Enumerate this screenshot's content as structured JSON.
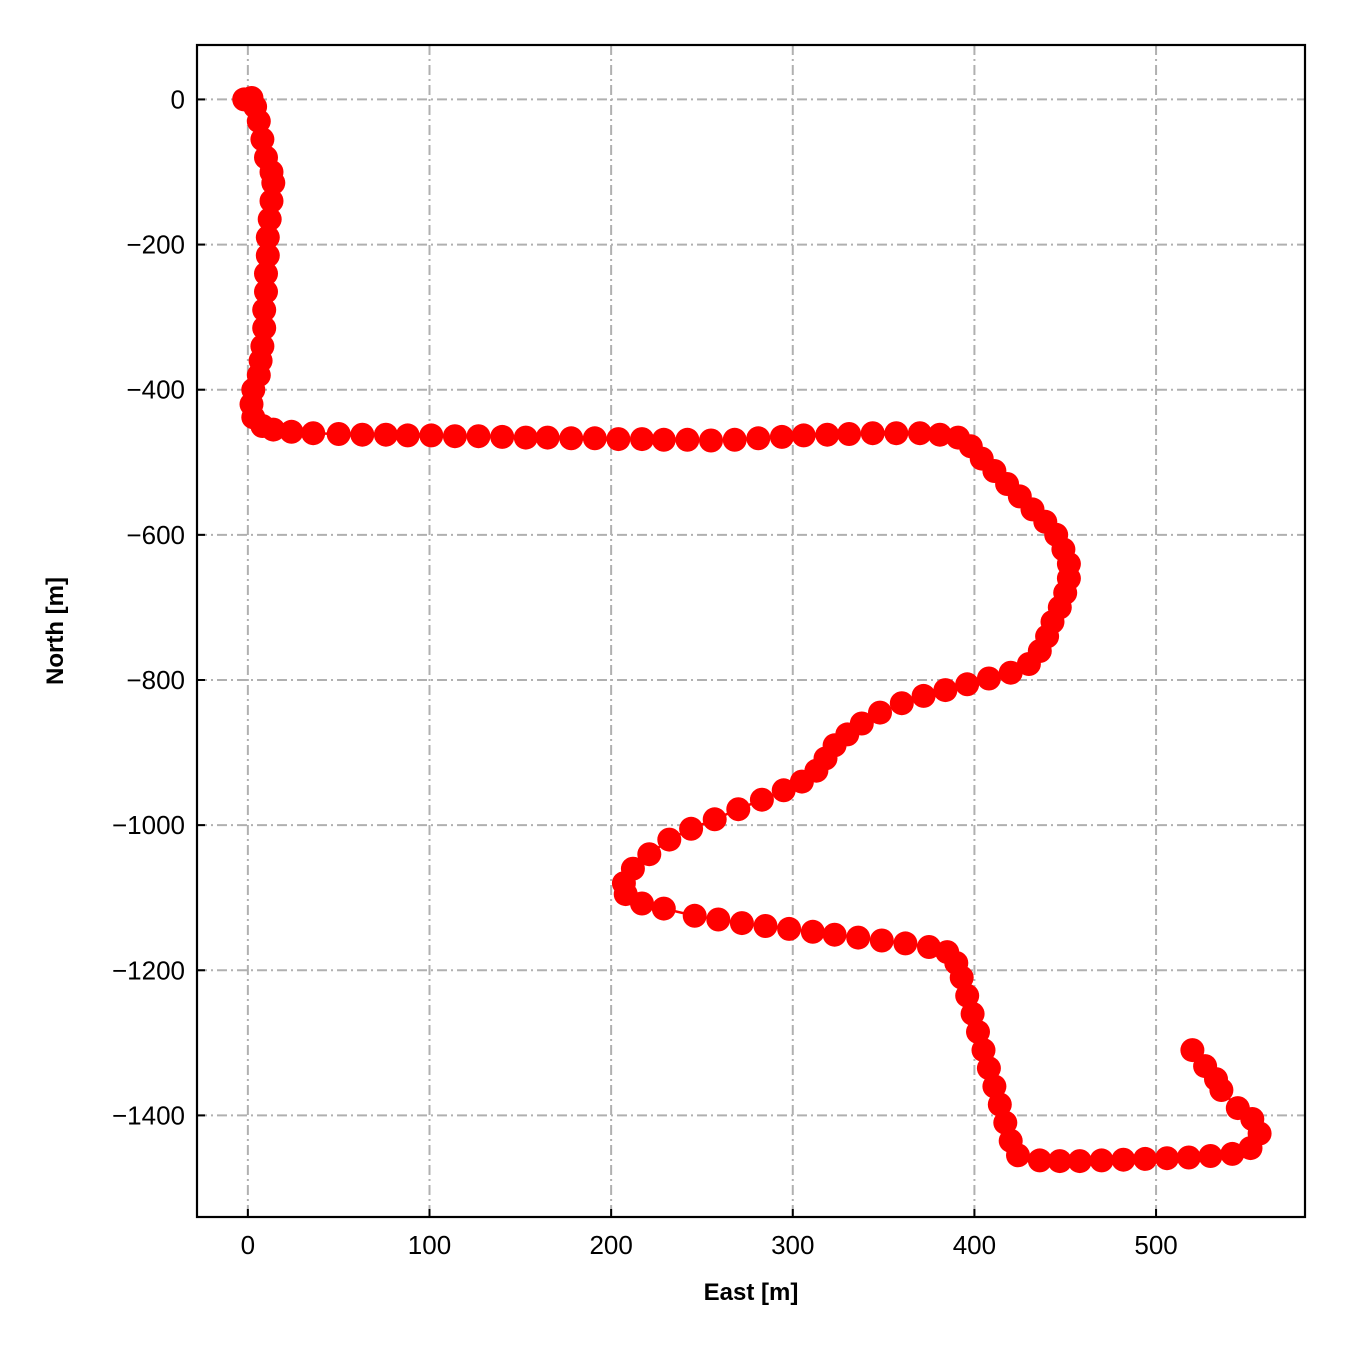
{
  "chart_data": {
    "type": "scatter",
    "xlabel": "East [m]",
    "ylabel": "North [m]",
    "xlim": [
      -28,
      582
    ],
    "ylim": [
      -1540,
      75
    ],
    "xticks": [
      0,
      100,
      200,
      300,
      400,
      500
    ],
    "yticks": [
      0,
      -200,
      -400,
      -600,
      -800,
      -1000,
      -1200,
      -1400
    ],
    "xtick_labels": [
      "0",
      "100",
      "200",
      "300",
      "400",
      "500"
    ],
    "ytick_labels": [
      "0",
      "−200",
      "−400",
      "−600",
      "−800",
      "−1000",
      "−1200",
      "−1400"
    ],
    "grid": true,
    "legend": "none",
    "series": [
      {
        "color": "#ff0000",
        "marker": "circle",
        "line": true,
        "points": [
          {
            "x": -2,
            "y": 0
          },
          {
            "x": 2,
            "y": 2
          },
          {
            "x": 4,
            "y": -10
          },
          {
            "x": 6,
            "y": -30
          },
          {
            "x": 8,
            "y": -55
          },
          {
            "x": 10,
            "y": -80
          },
          {
            "x": 13,
            "y": -100
          },
          {
            "x": 14,
            "y": -115
          },
          {
            "x": 13,
            "y": -140
          },
          {
            "x": 12,
            "y": -165
          },
          {
            "x": 11,
            "y": -190
          },
          {
            "x": 11,
            "y": -215
          },
          {
            "x": 10,
            "y": -240
          },
          {
            "x": 10,
            "y": -265
          },
          {
            "x": 9,
            "y": -290
          },
          {
            "x": 9,
            "y": -315
          },
          {
            "x": 8,
            "y": -340
          },
          {
            "x": 7,
            "y": -360
          },
          {
            "x": 6,
            "y": -380
          },
          {
            "x": 3,
            "y": -400
          },
          {
            "x": 2,
            "y": -420
          },
          {
            "x": 3,
            "y": -438
          },
          {
            "x": 8,
            "y": -450
          },
          {
            "x": 14,
            "y": -455
          },
          {
            "x": 24,
            "y": -458
          },
          {
            "x": 36,
            "y": -460
          },
          {
            "x": 50,
            "y": -461
          },
          {
            "x": 63,
            "y": -462
          },
          {
            "x": 76,
            "y": -462
          },
          {
            "x": 88,
            "y": -463
          },
          {
            "x": 101,
            "y": -463
          },
          {
            "x": 114,
            "y": -464
          },
          {
            "x": 127,
            "y": -464
          },
          {
            "x": 140,
            "y": -465
          },
          {
            "x": 153,
            "y": -466
          },
          {
            "x": 165,
            "y": -466
          },
          {
            "x": 178,
            "y": -467
          },
          {
            "x": 191,
            "y": -467
          },
          {
            "x": 204,
            "y": -468
          },
          {
            "x": 217,
            "y": -468
          },
          {
            "x": 229,
            "y": -469
          },
          {
            "x": 242,
            "y": -469
          },
          {
            "x": 255,
            "y": -470
          },
          {
            "x": 268,
            "y": -469
          },
          {
            "x": 281,
            "y": -467
          },
          {
            "x": 294,
            "y": -465
          },
          {
            "x": 306,
            "y": -463
          },
          {
            "x": 319,
            "y": -462
          },
          {
            "x": 331,
            "y": -461
          },
          {
            "x": 344,
            "y": -460
          },
          {
            "x": 357,
            "y": -460
          },
          {
            "x": 370,
            "y": -460
          },
          {
            "x": 381,
            "y": -462
          },
          {
            "x": 391,
            "y": -466
          },
          {
            "x": 398,
            "y": -478
          },
          {
            "x": 404,
            "y": -495
          },
          {
            "x": 411,
            "y": -512
          },
          {
            "x": 418,
            "y": -530
          },
          {
            "x": 425,
            "y": -547
          },
          {
            "x": 432,
            "y": -565
          },
          {
            "x": 439,
            "y": -582
          },
          {
            "x": 445,
            "y": -600
          },
          {
            "x": 449,
            "y": -620
          },
          {
            "x": 452,
            "y": -640
          },
          {
            "x": 452,
            "y": -660
          },
          {
            "x": 450,
            "y": -680
          },
          {
            "x": 447,
            "y": -700
          },
          {
            "x": 443,
            "y": -720
          },
          {
            "x": 440,
            "y": -740
          },
          {
            "x": 436,
            "y": -760
          },
          {
            "x": 430,
            "y": -778
          },
          {
            "x": 420,
            "y": -790
          },
          {
            "x": 408,
            "y": -798
          },
          {
            "x": 396,
            "y": -806
          },
          {
            "x": 384,
            "y": -814
          },
          {
            "x": 372,
            "y": -822
          },
          {
            "x": 360,
            "y": -832
          },
          {
            "x": 348,
            "y": -845
          },
          {
            "x": 338,
            "y": -860
          },
          {
            "x": 330,
            "y": -875
          },
          {
            "x": 323,
            "y": -890
          },
          {
            "x": 318,
            "y": -908
          },
          {
            "x": 313,
            "y": -925
          },
          {
            "x": 305,
            "y": -940
          },
          {
            "x": 295,
            "y": -952
          },
          {
            "x": 283,
            "y": -965
          },
          {
            "x": 270,
            "y": -978
          },
          {
            "x": 257,
            "y": -992
          },
          {
            "x": 244,
            "y": -1005
          },
          {
            "x": 232,
            "y": -1020
          },
          {
            "x": 221,
            "y": -1040
          },
          {
            "x": 212,
            "y": -1060
          },
          {
            "x": 207,
            "y": -1080
          },
          {
            "x": 208,
            "y": -1095
          },
          {
            "x": 217,
            "y": -1108
          },
          {
            "x": 229,
            "y": -1115
          },
          {
            "x": 246,
            "y": -1125
          },
          {
            "x": 259,
            "y": -1130
          },
          {
            "x": 272,
            "y": -1135
          },
          {
            "x": 285,
            "y": -1139
          },
          {
            "x": 298,
            "y": -1143
          },
          {
            "x": 311,
            "y": -1147
          },
          {
            "x": 323,
            "y": -1151
          },
          {
            "x": 336,
            "y": -1155
          },
          {
            "x": 349,
            "y": -1159
          },
          {
            "x": 362,
            "y": -1163
          },
          {
            "x": 375,
            "y": -1168
          },
          {
            "x": 385,
            "y": -1175
          },
          {
            "x": 390,
            "y": -1190
          },
          {
            "x": 393,
            "y": -1210
          },
          {
            "x": 396,
            "y": -1235
          },
          {
            "x": 399,
            "y": -1260
          },
          {
            "x": 402,
            "y": -1285
          },
          {
            "x": 405,
            "y": -1310
          },
          {
            "x": 408,
            "y": -1335
          },
          {
            "x": 411,
            "y": -1360
          },
          {
            "x": 414,
            "y": -1385
          },
          {
            "x": 417,
            "y": -1410
          },
          {
            "x": 420,
            "y": -1435
          },
          {
            "x": 424,
            "y": -1455
          },
          {
            "x": 436,
            "y": -1462
          },
          {
            "x": 447,
            "y": -1463
          },
          {
            "x": 458,
            "y": -1463
          },
          {
            "x": 470,
            "y": -1462
          },
          {
            "x": 482,
            "y": -1461
          },
          {
            "x": 494,
            "y": -1460
          },
          {
            "x": 506,
            "y": -1459
          },
          {
            "x": 518,
            "y": -1458
          },
          {
            "x": 530,
            "y": -1456
          },
          {
            "x": 542,
            "y": -1453
          },
          {
            "x": 552,
            "y": -1445
          },
          {
            "x": 557,
            "y": -1425
          },
          {
            "x": 553,
            "y": -1405
          },
          {
            "x": 545,
            "y": -1390
          },
          {
            "x": 536,
            "y": -1365
          },
          {
            "x": 533,
            "y": -1350
          },
          {
            "x": 527,
            "y": -1332
          },
          {
            "x": 520,
            "y": -1310
          }
        ]
      }
    ]
  }
}
